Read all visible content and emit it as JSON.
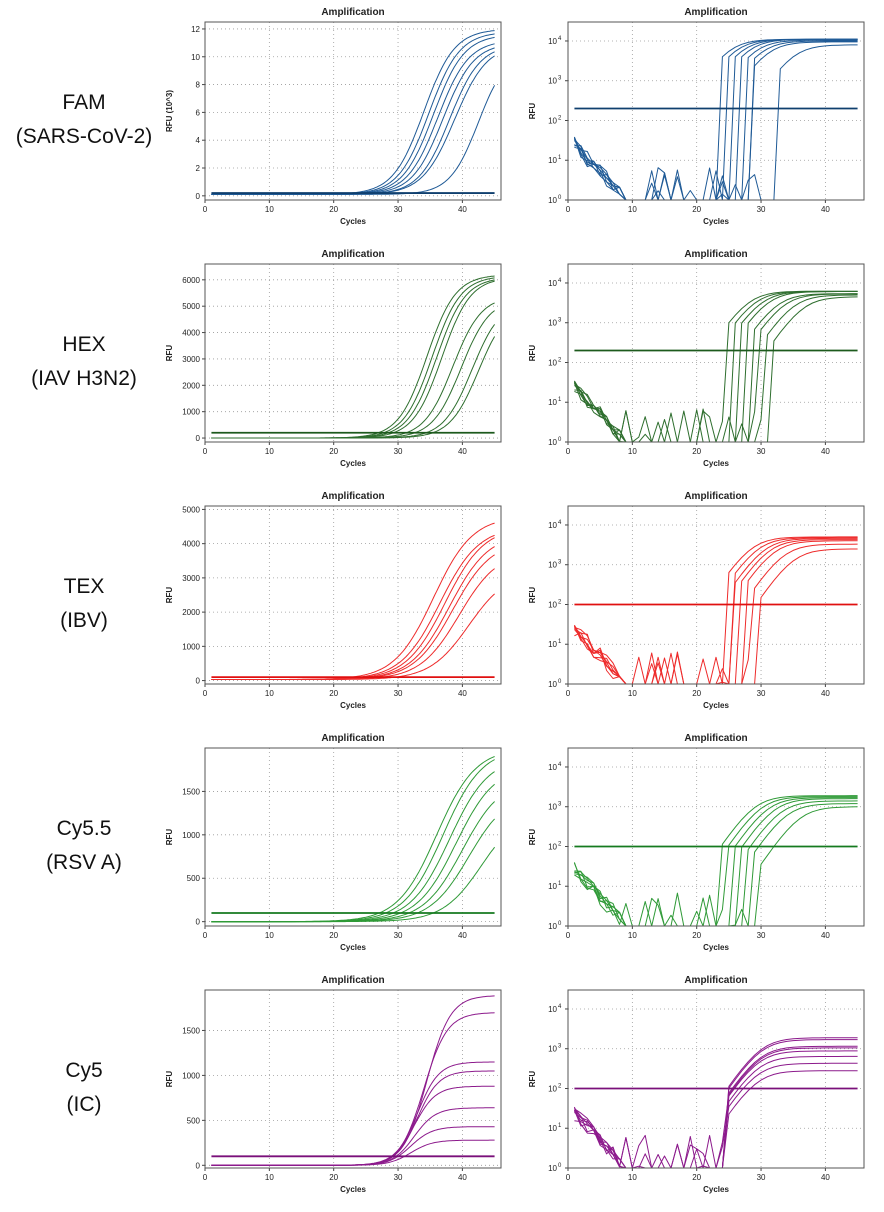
{
  "rows": [
    {
      "label1": "FAM",
      "label2": "(SARS-CoV-2)",
      "color": "#1f5a96",
      "threshold_color": "#0f3f6e"
    },
    {
      "label1": "HEX",
      "label2": "(IAV H3N2)",
      "color": "#2e6e2e",
      "threshold_color": "#1d5a1d"
    },
    {
      "label1": "TEX",
      "label2": "(IBV)",
      "color": "#ee2b2b",
      "threshold_color": "#e01010"
    },
    {
      "label1": "Cy5.5",
      "label2": "(RSV A)",
      "color": "#2f9a37",
      "threshold_color": "#157a1f"
    },
    {
      "label1": "Cy5",
      "label2": "(IC)",
      "color": "#8c1a8c",
      "threshold_color": "#7a107a"
    }
  ],
  "chart_data": [
    {
      "type": "line",
      "scale": "linear",
      "title": "Amplification",
      "xlabel": "Cycles",
      "ylabel": "RFU (10^3)",
      "xlim": [
        0,
        46
      ],
      "ylim": [
        -0.3,
        12.5
      ],
      "xticks": [
        0,
        10,
        20,
        30,
        40
      ],
      "yticks": [
        0,
        2,
        4,
        6,
        8,
        10,
        12
      ],
      "grid": true,
      "threshold": 0.2,
      "series": [
        {
          "base": 0.1,
          "plateau": 12.0,
          "ct": 34.0,
          "k": 0.42
        },
        {
          "base": 0.1,
          "plateau": 11.8,
          "ct": 34.8,
          "k": 0.42
        },
        {
          "base": 0.1,
          "plateau": 11.6,
          "ct": 35.5,
          "k": 0.42
        },
        {
          "base": 0.1,
          "plateau": 11.2,
          "ct": 36.2,
          "k": 0.42
        },
        {
          "base": 0.1,
          "plateau": 11.0,
          "ct": 37.0,
          "k": 0.42
        },
        {
          "base": 0.1,
          "plateau": 10.9,
          "ct": 38.0,
          "k": 0.42
        },
        {
          "base": 0.1,
          "plateau": 10.9,
          "ct": 38.8,
          "k": 0.4
        },
        {
          "base": 0.1,
          "plateau": 10.5,
          "ct": 42.5,
          "k": 0.45
        }
      ]
    },
    {
      "type": "line",
      "scale": "log",
      "title": "Amplification",
      "xlabel": "Cycles",
      "ylabel": "RFU",
      "xlim": [
        0,
        46
      ],
      "ylim": [
        1,
        30000
      ],
      "xticks": [
        0,
        10,
        20,
        30,
        40
      ],
      "yticks": [
        1,
        10,
        100,
        1000,
        10000
      ],
      "grid": true,
      "threshold": 200,
      "series": [
        {
          "ct": 25.0,
          "plateau": 11000,
          "start": 24
        },
        {
          "ct": 26.0,
          "plateau": 11000,
          "start": 25
        },
        {
          "ct": 27.0,
          "plateau": 11000,
          "start": 26
        },
        {
          "ct": 28.0,
          "plateau": 11000,
          "start": 27
        },
        {
          "ct": 29.0,
          "plateau": 10500,
          "start": 28
        },
        {
          "ct": 30.0,
          "plateau": 10000,
          "start": 29
        },
        {
          "ct": 31.0,
          "plateau": 9500,
          "start": 29
        },
        {
          "ct": 35.0,
          "plateau": 8000,
          "start": 33
        }
      ]
    },
    {
      "type": "line",
      "scale": "linear",
      "title": "Amplification",
      "xlabel": "Cycles",
      "ylabel": "RFU",
      "xlim": [
        0,
        46
      ],
      "ylim": [
        -150,
        6600
      ],
      "xticks": [
        0,
        10,
        20,
        30,
        40
      ],
      "yticks": [
        0,
        1000,
        2000,
        3000,
        4000,
        5000,
        6000
      ],
      "grid": true,
      "threshold": 200,
      "series": [
        {
          "base": 0,
          "plateau": 6200,
          "ct": 34.5,
          "k": 0.45
        },
        {
          "base": 0,
          "plateau": 6150,
          "ct": 35.3,
          "k": 0.45
        },
        {
          "base": 0,
          "plateau": 6100,
          "ct": 36.0,
          "k": 0.45
        },
        {
          "base": 0,
          "plateau": 6100,
          "ct": 36.8,
          "k": 0.45
        },
        {
          "base": 0,
          "plateau": 5400,
          "ct": 38.5,
          "k": 0.45
        },
        {
          "base": 0,
          "plateau": 5300,
          "ct": 39.8,
          "k": 0.45
        },
        {
          "base": 0,
          "plateau": 5200,
          "ct": 41.5,
          "k": 0.45
        },
        {
          "base": 0,
          "plateau": 5100,
          "ct": 42.5,
          "k": 0.45
        }
      ]
    },
    {
      "type": "line",
      "scale": "log",
      "title": "Amplification",
      "xlabel": "Cycles",
      "ylabel": "RFU",
      "xlim": [
        0,
        46
      ],
      "ylim": [
        1,
        30000
      ],
      "xticks": [
        0,
        10,
        20,
        30,
        40
      ],
      "yticks": [
        1,
        10,
        100,
        1000,
        10000
      ],
      "grid": true,
      "threshold": 200,
      "series": [
        {
          "ct": 28.0,
          "plateau": 6200,
          "start": 25
        },
        {
          "ct": 29.0,
          "plateau": 6150,
          "start": 26
        },
        {
          "ct": 30.0,
          "plateau": 6100,
          "start": 27
        },
        {
          "ct": 31.0,
          "plateau": 6100,
          "start": 28
        },
        {
          "ct": 32.5,
          "plateau": 5400,
          "start": 29
        },
        {
          "ct": 33.5,
          "plateau": 5300,
          "start": 30
        },
        {
          "ct": 35.0,
          "plateau": 5000,
          "start": 31
        },
        {
          "ct": 36.5,
          "plateau": 4500,
          "start": 32
        }
      ]
    },
    {
      "type": "line",
      "scale": "linear",
      "title": "Amplification",
      "xlabel": "Cycles",
      "ylabel": "RFU",
      "xlim": [
        0,
        46
      ],
      "ylim": [
        -100,
        5100
      ],
      "xticks": [
        0,
        10,
        20,
        30,
        40
      ],
      "yticks": [
        0,
        1000,
        2000,
        3000,
        4000,
        5000
      ],
      "grid": true,
      "threshold": 100,
      "series": [
        {
          "base": 30,
          "plateau": 4800,
          "ct": 35.5,
          "k": 0.33
        },
        {
          "base": 30,
          "plateau": 4500,
          "ct": 36.5,
          "k": 0.33
        },
        {
          "base": 30,
          "plateau": 4500,
          "ct": 37.3,
          "k": 0.33
        },
        {
          "base": 30,
          "plateau": 4300,
          "ct": 38.0,
          "k": 0.33
        },
        {
          "base": 30,
          "plateau": 4100,
          "ct": 38.5,
          "k": 0.33
        },
        {
          "base": 30,
          "plateau": 3800,
          "ct": 39.5,
          "k": 0.33
        },
        {
          "base": 30,
          "plateau": 3200,
          "ct": 41.0,
          "k": 0.33
        }
      ]
    },
    {
      "type": "line",
      "scale": "log",
      "title": "Amplification",
      "xlabel": "Cycles",
      "ylabel": "RFU",
      "xlim": [
        0,
        46
      ],
      "ylim": [
        1,
        30000
      ],
      "xticks": [
        0,
        10,
        20,
        30,
        40
      ],
      "yticks": [
        1,
        10,
        100,
        1000,
        10000
      ],
      "grid": true,
      "threshold": 100,
      "series": [
        {
          "ct": 28.5,
          "plateau": 5000,
          "start": 25
        },
        {
          "ct": 29.5,
          "plateau": 4800,
          "start": 26
        },
        {
          "ct": 30.5,
          "plateau": 4600,
          "start": 26
        },
        {
          "ct": 31.2,
          "plateau": 4300,
          "start": 27
        },
        {
          "ct": 32.0,
          "plateau": 4000,
          "start": 28
        },
        {
          "ct": 33.5,
          "plateau": 3300,
          "start": 29
        },
        {
          "ct": 35.0,
          "plateau": 2500,
          "start": 30
        }
      ]
    },
    {
      "type": "line",
      "scale": "linear",
      "title": "Amplification",
      "xlabel": "Cycles",
      "ylabel": "RFU",
      "xlim": [
        0,
        46
      ],
      "ylim": [
        -50,
        2000
      ],
      "xticks": [
        0,
        10,
        20,
        30,
        40
      ],
      "yticks": [
        0,
        500,
        1000,
        1500
      ],
      "grid": true,
      "threshold": 100,
      "series": [
        {
          "base": 0,
          "plateau": 2000,
          "ct": 36.0,
          "k": 0.33
        },
        {
          "base": 0,
          "plateau": 2000,
          "ct": 37.0,
          "k": 0.33
        },
        {
          "base": 0,
          "plateau": 1900,
          "ct": 38.0,
          "k": 0.33
        },
        {
          "base": 0,
          "plateau": 1800,
          "ct": 39.0,
          "k": 0.33
        },
        {
          "base": 0,
          "plateau": 1650,
          "ct": 40.0,
          "k": 0.33
        },
        {
          "base": 0,
          "plateau": 1500,
          "ct": 41.0,
          "k": 0.33
        },
        {
          "base": 0,
          "plateau": 1300,
          "ct": 43.0,
          "k": 0.33
        }
      ]
    },
    {
      "type": "line",
      "scale": "log",
      "title": "Amplification",
      "xlabel": "Cycles",
      "ylabel": "RFU",
      "xlim": [
        0,
        46
      ],
      "ylim": [
        1,
        30000
      ],
      "xticks": [
        0,
        10,
        20,
        30,
        40
      ],
      "yticks": [
        1,
        10,
        100,
        1000,
        10000
      ],
      "grid": true,
      "threshold": 100,
      "series": [
        {
          "ct": 29.0,
          "plateau": 1900,
          "start": 24
        },
        {
          "ct": 30.0,
          "plateau": 1800,
          "start": 25
        },
        {
          "ct": 31.0,
          "plateau": 1700,
          "start": 26
        },
        {
          "ct": 32.0,
          "plateau": 1600,
          "start": 27
        },
        {
          "ct": 33.0,
          "plateau": 1400,
          "start": 28
        },
        {
          "ct": 34.0,
          "plateau": 1200,
          "start": 29
        },
        {
          "ct": 36.0,
          "plateau": 1000,
          "start": 30
        }
      ]
    },
    {
      "type": "line",
      "scale": "linear",
      "title": "Amplification",
      "xlabel": "Cycles",
      "ylabel": "RFU",
      "xlim": [
        0,
        46
      ],
      "ylim": [
        -30,
        1950
      ],
      "xticks": [
        0,
        10,
        20,
        30,
        40
      ],
      "yticks": [
        0,
        500,
        1000,
        1500
      ],
      "grid": true,
      "threshold": 100,
      "series": [
        {
          "base": 0,
          "plateau": 1890,
          "ct": 34.5,
          "k": 0.55
        },
        {
          "base": 0,
          "plateau": 1700,
          "ct": 34.0,
          "k": 0.55
        },
        {
          "base": 0,
          "plateau": 1150,
          "ct": 33.0,
          "k": 0.6
        },
        {
          "base": 0,
          "plateau": 1050,
          "ct": 33.0,
          "k": 0.6
        },
        {
          "base": 0,
          "plateau": 880,
          "ct": 32.5,
          "k": 0.6
        },
        {
          "base": 0,
          "plateau": 640,
          "ct": 32.5,
          "k": 0.6
        },
        {
          "base": 0,
          "plateau": 430,
          "ct": 32.0,
          "k": 0.6
        },
        {
          "base": 0,
          "plateau": 280,
          "ct": 32.0,
          "k": 0.6
        }
      ]
    },
    {
      "type": "line",
      "scale": "log",
      "title": "Amplification",
      "xlabel": "Cycles",
      "ylabel": "RFU",
      "xlim": [
        0,
        46
      ],
      "ylim": [
        1,
        30000
      ],
      "xticks": [
        0,
        10,
        20,
        30,
        40
      ],
      "yticks": [
        1,
        10,
        100,
        1000,
        10000
      ],
      "grid": true,
      "threshold": 100,
      "series": [
        {
          "ct": 30.0,
          "plateau": 1890,
          "start": 25
        },
        {
          "ct": 30.0,
          "plateau": 1700,
          "start": 25
        },
        {
          "ct": 29.8,
          "plateau": 1150,
          "start": 25
        },
        {
          "ct": 29.8,
          "plateau": 1050,
          "start": 25
        },
        {
          "ct": 29.6,
          "plateau": 880,
          "start": 25
        },
        {
          "ct": 29.6,
          "plateau": 640,
          "start": 25
        },
        {
          "ct": 29.4,
          "plateau": 430,
          "start": 25
        },
        {
          "ct": 29.4,
          "plateau": 280,
          "start": 25
        }
      ]
    }
  ]
}
